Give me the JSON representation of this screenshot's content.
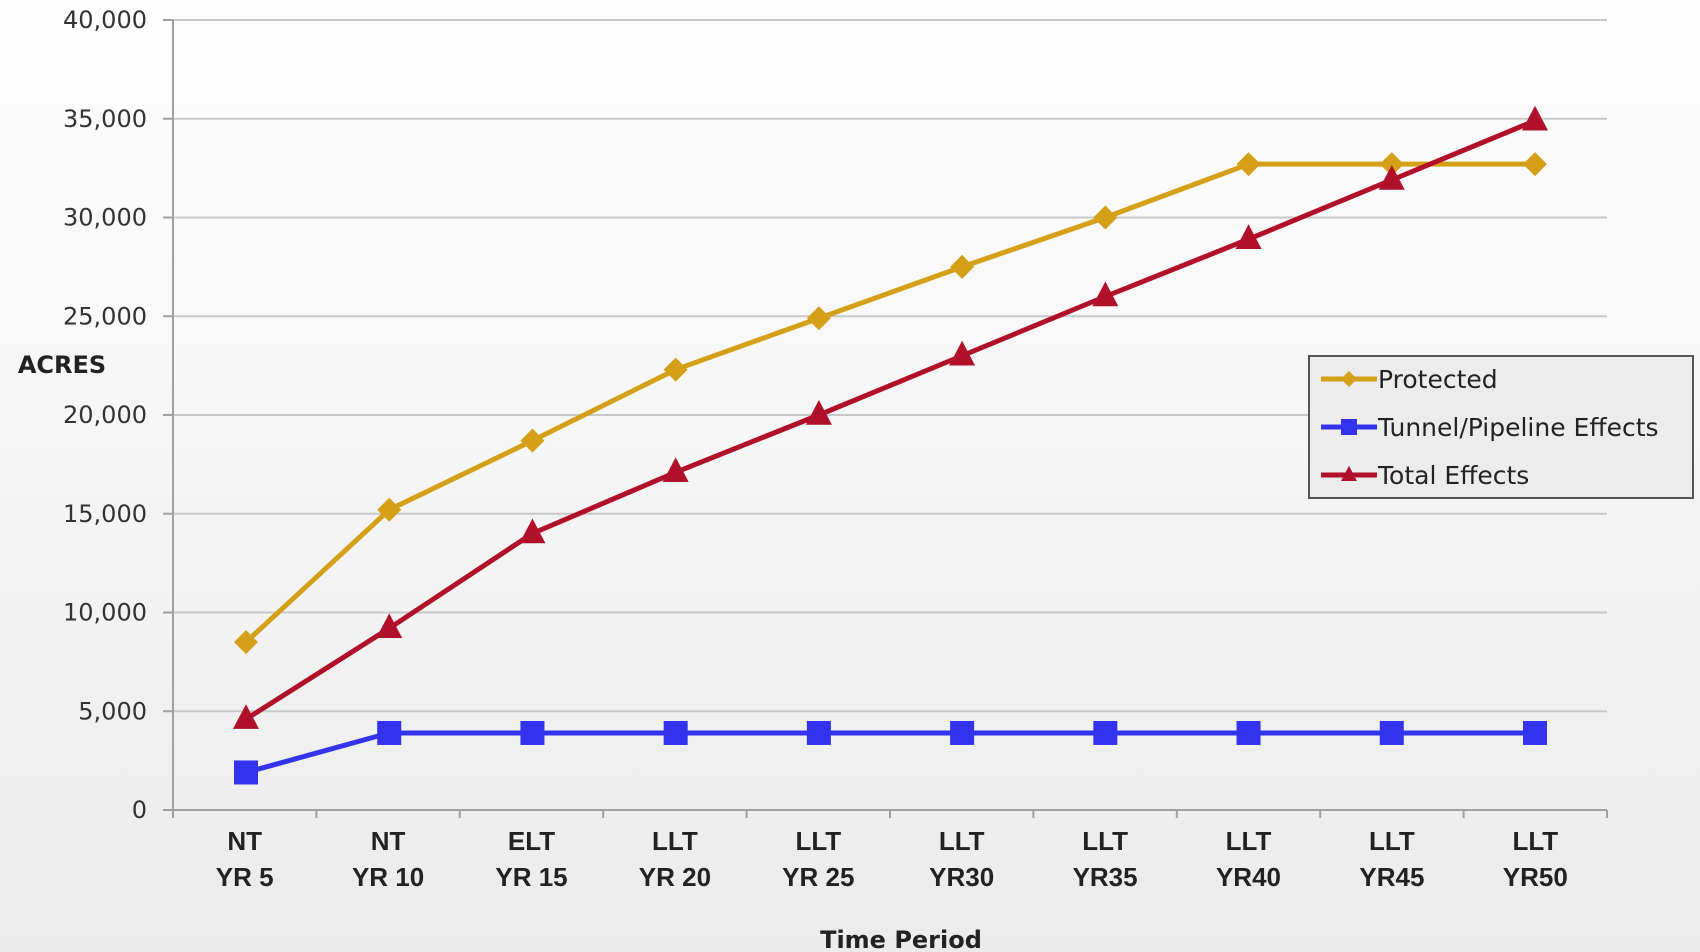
{
  "chart_data": {
    "type": "line",
    "categories": [
      [
        "NT",
        "YR 5"
      ],
      [
        "NT",
        "YR 10"
      ],
      [
        "ELT",
        "YR 15"
      ],
      [
        "LLT",
        "YR 20"
      ],
      [
        "LLT",
        "YR 25"
      ],
      [
        "LLT",
        "YR30"
      ],
      [
        "LLT",
        "YR35"
      ],
      [
        "LLT",
        "YR40"
      ],
      [
        "LLT",
        "YR45"
      ],
      [
        "LLT",
        "YR50"
      ]
    ],
    "series": [
      {
        "name": "Protected",
        "color": "#D4A017",
        "marker": "diamond",
        "values": [
          8500,
          15200,
          18700,
          22300,
          24900,
          27500,
          30000,
          32700,
          32700,
          32700
        ]
      },
      {
        "name": "Tunnel/Pipeline Effects",
        "color": "#3333EE",
        "marker": "square",
        "values": [
          1900,
          3900,
          3900,
          3900,
          3900,
          3900,
          3900,
          3900,
          3900,
          3900
        ]
      },
      {
        "name": "Total Effects",
        "color": "#B0102A",
        "marker": "triangle",
        "values": [
          4600,
          9200,
          14000,
          17100,
          20000,
          23000,
          26000,
          28900,
          31900,
          34900
        ]
      }
    ],
    "ylim": [
      0,
      40000
    ],
    "yticks": [
      "0",
      "5,000",
      "10,000",
      "15,000",
      "20,000",
      "25,000",
      "30,000",
      "35,000",
      "40,000"
    ],
    "ylabel": "ACRES",
    "xlabel": "Time Period",
    "grid": true,
    "legend_position": "right"
  }
}
